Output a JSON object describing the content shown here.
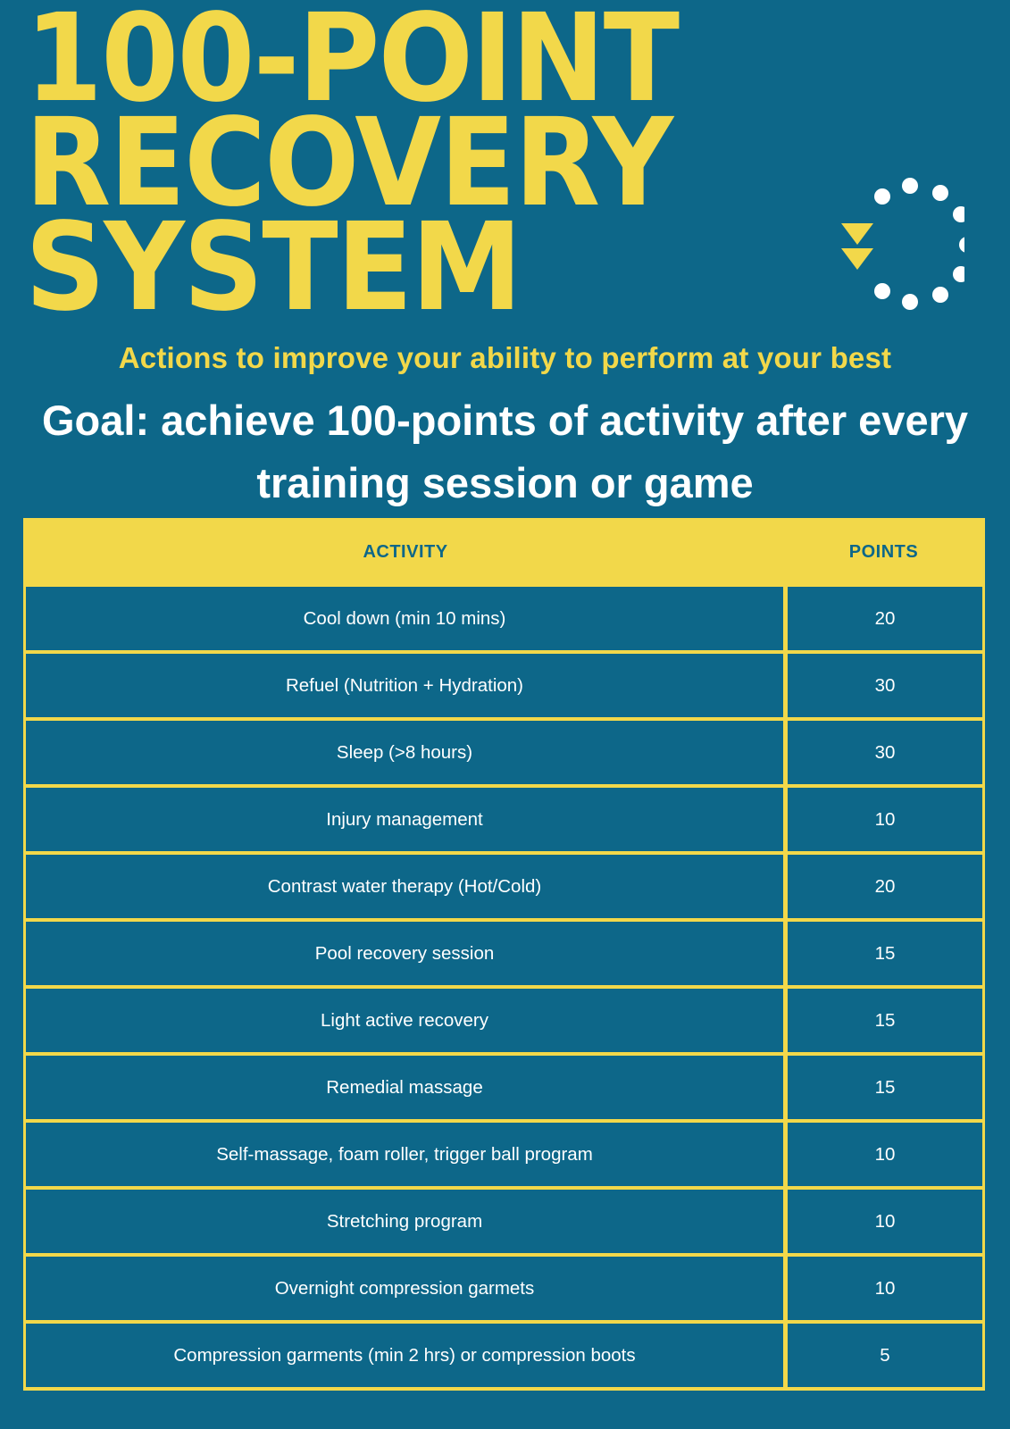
{
  "title": {
    "lines": [
      "100-POINT",
      "RECOVERY",
      "SYSTEM"
    ]
  },
  "logo": {
    "icon": "recovery-cycle-icon",
    "dot_count": 10,
    "triangle_count": 2,
    "colors": {
      "dots": "#ffffff",
      "triangles": "#f2d84a"
    }
  },
  "subtitle": "Actions to improve your ability to perform at your best",
  "goal": {
    "line1": "Goal: achieve 100-points of activity after every",
    "line2": "training session or game"
  },
  "table": {
    "headers": {
      "activity": "ACTIVITY",
      "points": "POINTS"
    },
    "rows": [
      {
        "activity": "Cool down (min 10 mins)",
        "points": "20"
      },
      {
        "activity": "Refuel (Nutrition + Hydration)",
        "points": "30"
      },
      {
        "activity": "Sleep (>8 hours)",
        "points": "30"
      },
      {
        "activity": "Injury management",
        "points": "10"
      },
      {
        "activity": "Contrast water therapy (Hot/Cold)",
        "points": "20"
      },
      {
        "activity": "Pool recovery session",
        "points": "15"
      },
      {
        "activity": "Light active recovery",
        "points": "15"
      },
      {
        "activity": "Remedial massage",
        "points": "15"
      },
      {
        "activity": "Self-massage, foam roller, trigger ball program",
        "points": "10"
      },
      {
        "activity": "Stretching program",
        "points": "10"
      },
      {
        "activity": "Overnight compression garmets",
        "points": "10"
      },
      {
        "activity": "Compression garments (min 2 hrs) or compression boots",
        "points": "5"
      }
    ]
  },
  "colors": {
    "background": "#0d6789",
    "accent": "#f2d84a",
    "text": "#ffffff"
  }
}
